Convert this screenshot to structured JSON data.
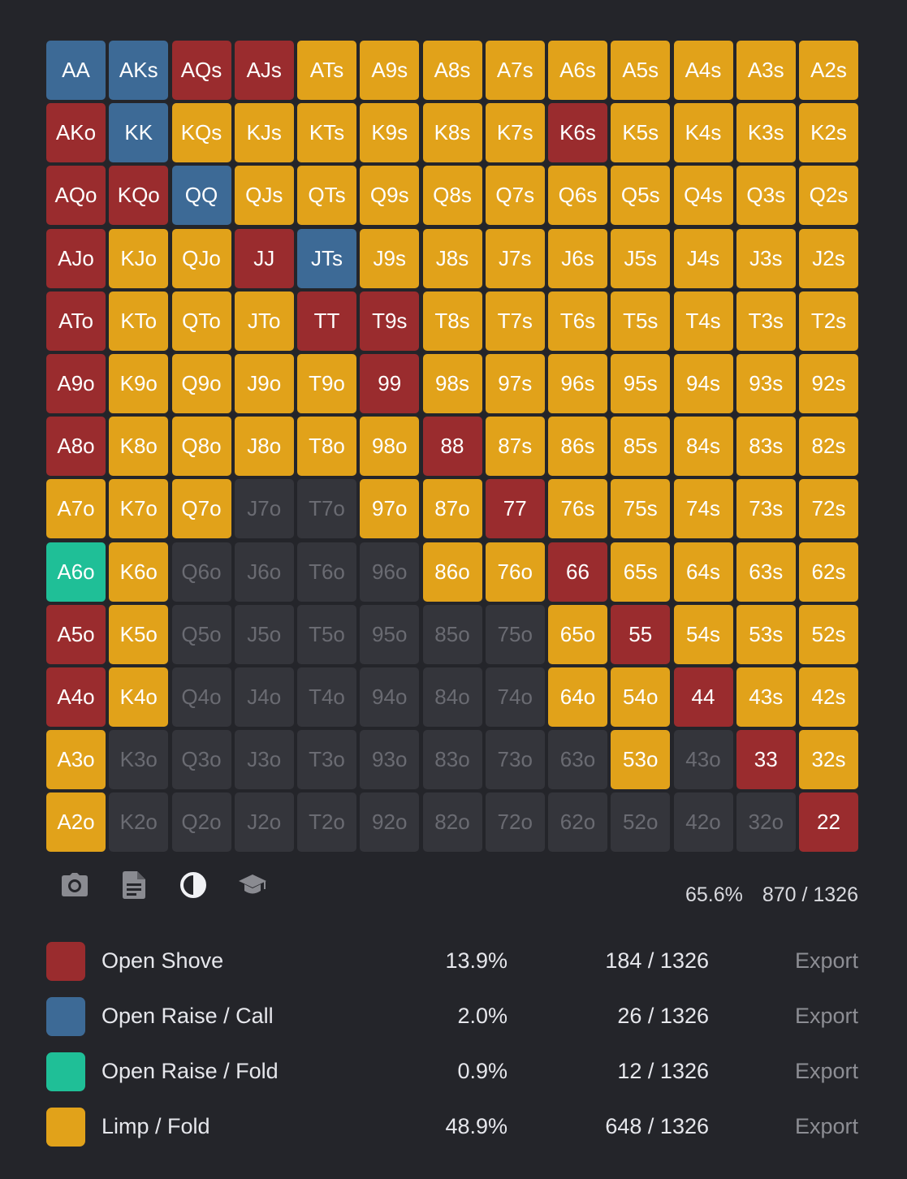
{
  "colors": {
    "shove": "#9a2c2e",
    "call": "#3d6a96",
    "fold": "#1fbf97",
    "limp": "#e1a21a",
    "none": "#34353b"
  },
  "grid": [
    [
      [
        "AA",
        "call"
      ],
      [
        "AKs",
        "call"
      ],
      [
        "AQs",
        "shove"
      ],
      [
        "AJs",
        "shove"
      ],
      [
        "ATs",
        "limp"
      ],
      [
        "A9s",
        "limp"
      ],
      [
        "A8s",
        "limp"
      ],
      [
        "A7s",
        "limp"
      ],
      [
        "A6s",
        "limp"
      ],
      [
        "A5s",
        "limp"
      ],
      [
        "A4s",
        "limp"
      ],
      [
        "A3s",
        "limp"
      ],
      [
        "A2s",
        "limp"
      ]
    ],
    [
      [
        "AKo",
        "shove"
      ],
      [
        "KK",
        "call"
      ],
      [
        "KQs",
        "limp"
      ],
      [
        "KJs",
        "limp"
      ],
      [
        "KTs",
        "limp"
      ],
      [
        "K9s",
        "limp"
      ],
      [
        "K8s",
        "limp"
      ],
      [
        "K7s",
        "limp"
      ],
      [
        "K6s",
        "shove"
      ],
      [
        "K5s",
        "limp"
      ],
      [
        "K4s",
        "limp"
      ],
      [
        "K3s",
        "limp"
      ],
      [
        "K2s",
        "limp"
      ]
    ],
    [
      [
        "AQo",
        "shove"
      ],
      [
        "KQo",
        "shove"
      ],
      [
        "QQ",
        "call"
      ],
      [
        "QJs",
        "limp"
      ],
      [
        "QTs",
        "limp"
      ],
      [
        "Q9s",
        "limp"
      ],
      [
        "Q8s",
        "limp"
      ],
      [
        "Q7s",
        "limp"
      ],
      [
        "Q6s",
        "limp"
      ],
      [
        "Q5s",
        "limp"
      ],
      [
        "Q4s",
        "limp"
      ],
      [
        "Q3s",
        "limp"
      ],
      [
        "Q2s",
        "limp"
      ]
    ],
    [
      [
        "AJo",
        "shove"
      ],
      [
        "KJo",
        "limp"
      ],
      [
        "QJo",
        "limp"
      ],
      [
        "JJ",
        "shove"
      ],
      [
        "JTs",
        "call"
      ],
      [
        "J9s",
        "limp"
      ],
      [
        "J8s",
        "limp"
      ],
      [
        "J7s",
        "limp"
      ],
      [
        "J6s",
        "limp"
      ],
      [
        "J5s",
        "limp"
      ],
      [
        "J4s",
        "limp"
      ],
      [
        "J3s",
        "limp"
      ],
      [
        "J2s",
        "limp"
      ]
    ],
    [
      [
        "ATo",
        "shove"
      ],
      [
        "KTo",
        "limp"
      ],
      [
        "QTo",
        "limp"
      ],
      [
        "JTo",
        "limp"
      ],
      [
        "TT",
        "shove"
      ],
      [
        "T9s",
        "shove"
      ],
      [
        "T8s",
        "limp"
      ],
      [
        "T7s",
        "limp"
      ],
      [
        "T6s",
        "limp"
      ],
      [
        "T5s",
        "limp"
      ],
      [
        "T4s",
        "limp"
      ],
      [
        "T3s",
        "limp"
      ],
      [
        "T2s",
        "limp"
      ]
    ],
    [
      [
        "A9o",
        "shove"
      ],
      [
        "K9o",
        "limp"
      ],
      [
        "Q9o",
        "limp"
      ],
      [
        "J9o",
        "limp"
      ],
      [
        "T9o",
        "limp"
      ],
      [
        "99",
        "shove"
      ],
      [
        "98s",
        "limp"
      ],
      [
        "97s",
        "limp"
      ],
      [
        "96s",
        "limp"
      ],
      [
        "95s",
        "limp"
      ],
      [
        "94s",
        "limp"
      ],
      [
        "93s",
        "limp"
      ],
      [
        "92s",
        "limp"
      ]
    ],
    [
      [
        "A8o",
        "shove"
      ],
      [
        "K8o",
        "limp"
      ],
      [
        "Q8o",
        "limp"
      ],
      [
        "J8o",
        "limp"
      ],
      [
        "T8o",
        "limp"
      ],
      [
        "98o",
        "limp"
      ],
      [
        "88",
        "shove"
      ],
      [
        "87s",
        "limp"
      ],
      [
        "86s",
        "limp"
      ],
      [
        "85s",
        "limp"
      ],
      [
        "84s",
        "limp"
      ],
      [
        "83s",
        "limp"
      ],
      [
        "82s",
        "limp"
      ]
    ],
    [
      [
        "A7o",
        "limp"
      ],
      [
        "K7o",
        "limp"
      ],
      [
        "Q7o",
        "limp"
      ],
      [
        "J7o",
        "none"
      ],
      [
        "T7o",
        "none"
      ],
      [
        "97o",
        "limp"
      ],
      [
        "87o",
        "limp"
      ],
      [
        "77",
        "shove"
      ],
      [
        "76s",
        "limp"
      ],
      [
        "75s",
        "limp"
      ],
      [
        "74s",
        "limp"
      ],
      [
        "73s",
        "limp"
      ],
      [
        "72s",
        "limp"
      ]
    ],
    [
      [
        "A6o",
        "fold"
      ],
      [
        "K6o",
        "limp"
      ],
      [
        "Q6o",
        "none"
      ],
      [
        "J6o",
        "none"
      ],
      [
        "T6o",
        "none"
      ],
      [
        "96o",
        "none"
      ],
      [
        "86o",
        "limp"
      ],
      [
        "76o",
        "limp"
      ],
      [
        "66",
        "shove"
      ],
      [
        "65s",
        "limp"
      ],
      [
        "64s",
        "limp"
      ],
      [
        "63s",
        "limp"
      ],
      [
        "62s",
        "limp"
      ]
    ],
    [
      [
        "A5o",
        "shove"
      ],
      [
        "K5o",
        "limp"
      ],
      [
        "Q5o",
        "none"
      ],
      [
        "J5o",
        "none"
      ],
      [
        "T5o",
        "none"
      ],
      [
        "95o",
        "none"
      ],
      [
        "85o",
        "none"
      ],
      [
        "75o",
        "none"
      ],
      [
        "65o",
        "limp"
      ],
      [
        "55",
        "shove"
      ],
      [
        "54s",
        "limp"
      ],
      [
        "53s",
        "limp"
      ],
      [
        "52s",
        "limp"
      ]
    ],
    [
      [
        "A4o",
        "shove"
      ],
      [
        "K4o",
        "limp"
      ],
      [
        "Q4o",
        "none"
      ],
      [
        "J4o",
        "none"
      ],
      [
        "T4o",
        "none"
      ],
      [
        "94o",
        "none"
      ],
      [
        "84o",
        "none"
      ],
      [
        "74o",
        "none"
      ],
      [
        "64o",
        "limp"
      ],
      [
        "54o",
        "limp"
      ],
      [
        "44",
        "shove"
      ],
      [
        "43s",
        "limp"
      ],
      [
        "42s",
        "limp"
      ]
    ],
    [
      [
        "A3o",
        "limp"
      ],
      [
        "K3o",
        "none"
      ],
      [
        "Q3o",
        "none"
      ],
      [
        "J3o",
        "none"
      ],
      [
        "T3o",
        "none"
      ],
      [
        "93o",
        "none"
      ],
      [
        "83o",
        "none"
      ],
      [
        "73o",
        "none"
      ],
      [
        "63o",
        "none"
      ],
      [
        "53o",
        "limp"
      ],
      [
        "43o",
        "none"
      ],
      [
        "33",
        "shove"
      ],
      [
        "32s",
        "limp"
      ]
    ],
    [
      [
        "A2o",
        "limp"
      ],
      [
        "K2o",
        "none"
      ],
      [
        "Q2o",
        "none"
      ],
      [
        "J2o",
        "none"
      ],
      [
        "T2o",
        "none"
      ],
      [
        "92o",
        "none"
      ],
      [
        "82o",
        "none"
      ],
      [
        "72o",
        "none"
      ],
      [
        "62o",
        "none"
      ],
      [
        "52o",
        "none"
      ],
      [
        "42o",
        "none"
      ],
      [
        "32o",
        "none"
      ],
      [
        "22",
        "shove"
      ]
    ]
  ],
  "toolbar": {
    "icons": [
      "camera-icon",
      "document-icon",
      "contrast-icon",
      "graduation-cap-icon"
    ]
  },
  "totals": {
    "percent": "65.6%",
    "combos": "870 / 1326"
  },
  "legend": [
    {
      "key": "shove",
      "label": "Open Shove",
      "percent": "13.9%",
      "combos": "184 / 1326",
      "export": "Export"
    },
    {
      "key": "call",
      "label": "Open Raise / Call",
      "percent": "2.0%",
      "combos": "26 / 1326",
      "export": "Export"
    },
    {
      "key": "fold",
      "label": "Open Raise / Fold",
      "percent": "0.9%",
      "combos": "12 / 1326",
      "export": "Export"
    },
    {
      "key": "limp",
      "label": "Limp / Fold",
      "percent": "48.9%",
      "combos": "648 / 1326",
      "export": "Export"
    }
  ]
}
